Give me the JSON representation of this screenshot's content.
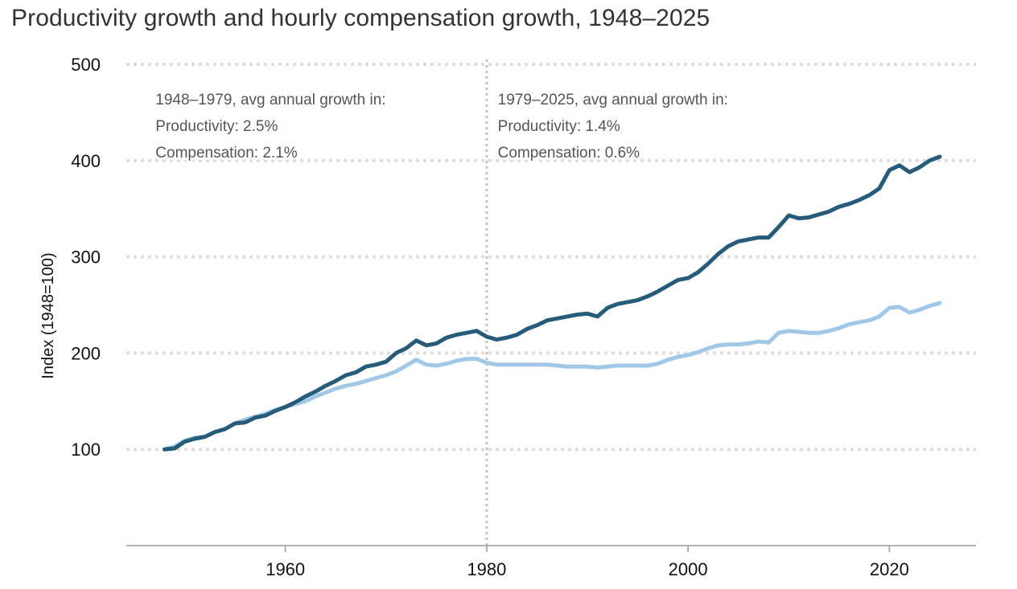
{
  "chart_data": {
    "type": "line",
    "title": "Productivity growth and hourly compensation growth, 1948–2025",
    "ylabel": "Index (1948=100)",
    "xlabel": "",
    "xlim": [
      1944.2,
      2028.6
    ],
    "ylim": [
      0,
      500
    ],
    "x_ticks": [
      1960,
      1980,
      2000,
      2020
    ],
    "x_tick_labels": [
      "1960",
      "1980",
      "2000",
      "2020"
    ],
    "y_ticks": [
      100,
      200,
      300,
      400,
      500
    ],
    "y_tick_labels": [
      "100",
      "200",
      "300",
      "400",
      "500"
    ],
    "grid": "horizontal dotted",
    "reference_line_x": 1980,
    "annotations": [
      {
        "x_anchor": 1947.1,
        "side": "left",
        "lines": [
          "1948–1979, avg annual growth in:",
          "Productivity: 2.5%",
          "Compensation: 2.1%"
        ]
      },
      {
        "x_anchor": 1981.1,
        "side": "right",
        "lines": [
          "1979–2025, avg annual growth in:",
          "Productivity: 1.4%",
          "Compensation: 0.6%"
        ]
      }
    ],
    "series": [
      {
        "key": "productivity",
        "color": "#265c7a",
        "points": [
          [
            1948,
            100
          ],
          [
            1949,
            101
          ],
          [
            1950,
            108
          ],
          [
            1951,
            111
          ],
          [
            1952,
            113
          ],
          [
            1953,
            118
          ],
          [
            1954,
            121
          ],
          [
            1955,
            127
          ],
          [
            1956,
            128
          ],
          [
            1957,
            133
          ],
          [
            1958,
            135
          ],
          [
            1959,
            140
          ],
          [
            1960,
            144
          ],
          [
            1961,
            149
          ],
          [
            1962,
            155
          ],
          [
            1963,
            160
          ],
          [
            1964,
            166
          ],
          [
            1965,
            171
          ],
          [
            1966,
            177
          ],
          [
            1967,
            180
          ],
          [
            1968,
            186
          ],
          [
            1969,
            188
          ],
          [
            1970,
            191
          ],
          [
            1971,
            200
          ],
          [
            1972,
            205
          ],
          [
            1973,
            213
          ],
          [
            1974,
            208
          ],
          [
            1975,
            210
          ],
          [
            1976,
            216
          ],
          [
            1977,
            219
          ],
          [
            1978,
            221
          ],
          [
            1979,
            223
          ],
          [
            1980,
            217
          ],
          [
            1981,
            214
          ],
          [
            1982,
            216
          ],
          [
            1983,
            219
          ],
          [
            1984,
            225
          ],
          [
            1985,
            229
          ],
          [
            1986,
            234
          ],
          [
            1987,
            236
          ],
          [
            1988,
            238
          ],
          [
            1989,
            240
          ],
          [
            1990,
            241
          ],
          [
            1991,
            238
          ],
          [
            1992,
            247
          ],
          [
            1993,
            251
          ],
          [
            1994,
            253
          ],
          [
            1995,
            255
          ],
          [
            1996,
            259
          ],
          [
            1997,
            264
          ],
          [
            1998,
            270
          ],
          [
            1999,
            276
          ],
          [
            2000,
            278
          ],
          [
            2001,
            284
          ],
          [
            2002,
            293
          ],
          [
            2003,
            303
          ],
          [
            2004,
            311
          ],
          [
            2005,
            316
          ],
          [
            2006,
            318
          ],
          [
            2007,
            320
          ],
          [
            2008,
            320
          ],
          [
            2009,
            331
          ],
          [
            2010,
            343
          ],
          [
            2011,
            340
          ],
          [
            2012,
            341
          ],
          [
            2013,
            344
          ],
          [
            2014,
            347
          ],
          [
            2015,
            352
          ],
          [
            2016,
            355
          ],
          [
            2017,
            359
          ],
          [
            2018,
            364
          ],
          [
            2019,
            371
          ],
          [
            2020,
            390
          ],
          [
            2021,
            395
          ],
          [
            2022,
            388
          ],
          [
            2023,
            393
          ],
          [
            2024,
            400
          ],
          [
            2025,
            404
          ]
        ]
      },
      {
        "key": "compensation",
        "color": "#a2c8e8",
        "points": [
          [
            1948,
            100
          ],
          [
            1949,
            103
          ],
          [
            1950,
            109
          ],
          [
            1951,
            112
          ],
          [
            1952,
            113
          ],
          [
            1953,
            118
          ],
          [
            1954,
            121
          ],
          [
            1955,
            127
          ],
          [
            1956,
            131
          ],
          [
            1957,
            134
          ],
          [
            1958,
            137
          ],
          [
            1959,
            141
          ],
          [
            1960,
            144
          ],
          [
            1961,
            147
          ],
          [
            1962,
            150
          ],
          [
            1963,
            155
          ],
          [
            1964,
            159
          ],
          [
            1965,
            163
          ],
          [
            1966,
            166
          ],
          [
            1967,
            168
          ],
          [
            1968,
            171
          ],
          [
            1969,
            174
          ],
          [
            1970,
            177
          ],
          [
            1971,
            181
          ],
          [
            1972,
            187
          ],
          [
            1973,
            193
          ],
          [
            1974,
            188
          ],
          [
            1975,
            187
          ],
          [
            1976,
            189
          ],
          [
            1977,
            192
          ],
          [
            1978,
            194
          ],
          [
            1979,
            194
          ],
          [
            1980,
            190
          ],
          [
            1981,
            188
          ],
          [
            1982,
            188
          ],
          [
            1983,
            188
          ],
          [
            1984,
            188
          ],
          [
            1985,
            188
          ],
          [
            1986,
            188
          ],
          [
            1987,
            187
          ],
          [
            1988,
            186
          ],
          [
            1989,
            186
          ],
          [
            1990,
            186
          ],
          [
            1991,
            185
          ],
          [
            1992,
            186
          ],
          [
            1993,
            187
          ],
          [
            1994,
            187
          ],
          [
            1995,
            187
          ],
          [
            1996,
            187
          ],
          [
            1997,
            189
          ],
          [
            1998,
            193
          ],
          [
            1999,
            196
          ],
          [
            2000,
            198
          ],
          [
            2001,
            201
          ],
          [
            2002,
            205
          ],
          [
            2003,
            208
          ],
          [
            2004,
            209
          ],
          [
            2005,
            209
          ],
          [
            2006,
            210
          ],
          [
            2007,
            212
          ],
          [
            2008,
            211
          ],
          [
            2009,
            221
          ],
          [
            2010,
            223
          ],
          [
            2011,
            222
          ],
          [
            2012,
            221
          ],
          [
            2013,
            221
          ],
          [
            2014,
            223
          ],
          [
            2015,
            226
          ],
          [
            2016,
            230
          ],
          [
            2017,
            232
          ],
          [
            2018,
            234
          ],
          [
            2019,
            238
          ],
          [
            2020,
            247
          ],
          [
            2021,
            248
          ],
          [
            2022,
            242
          ],
          [
            2023,
            245
          ],
          [
            2024,
            249
          ],
          [
            2025,
            252
          ]
        ]
      }
    ]
  }
}
